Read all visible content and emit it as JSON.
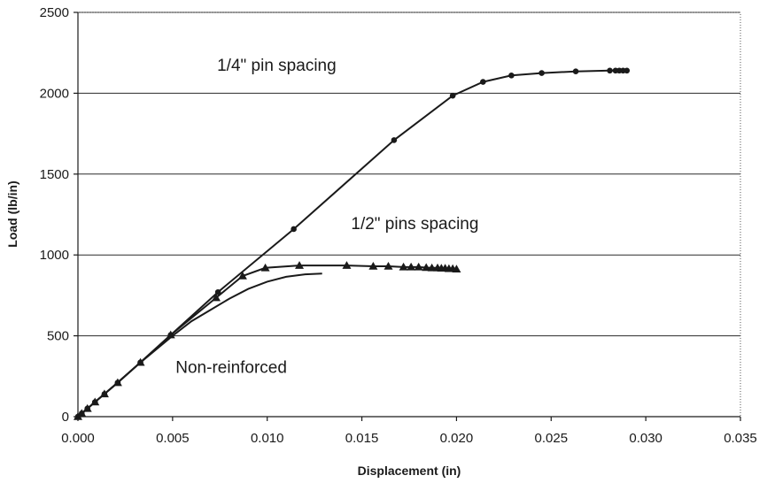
{
  "chart_data": {
    "type": "line",
    "title": "",
    "xlabel": "Displacement (in)",
    "ylabel": "Load (lb/in)",
    "xlim": [
      0.0,
      0.035
    ],
    "ylim": [
      0,
      2500
    ],
    "x_ticks": [
      "0.000",
      "0.005",
      "0.010",
      "0.015",
      "0.020",
      "0.025",
      "0.030",
      "0.035"
    ],
    "y_ticks": [
      "0",
      "500",
      "1000",
      "1500",
      "2000",
      "2500"
    ],
    "grid": "horizontal",
    "annotations": [
      {
        "text": "1/4\" pin spacing",
        "x": 0.0105,
        "y": 2140
      },
      {
        "text": "1/2\" pins spacing",
        "x": 0.0178,
        "y": 1160
      },
      {
        "text": "Non-reinforced",
        "x": 0.0081,
        "y": 270
      }
    ],
    "series": [
      {
        "marker": "circle",
        "points": [
          [
            0.0,
            0
          ],
          [
            0.0002,
            20
          ],
          [
            0.0005,
            50
          ],
          [
            0.0009,
            90
          ],
          [
            0.0014,
            140
          ],
          [
            0.0021,
            210
          ],
          [
            0.0033,
            335
          ],
          [
            0.0049,
            505
          ],
          [
            0.0074,
            770
          ],
          [
            0.0114,
            1160
          ],
          [
            0.0167,
            1710
          ],
          [
            0.0198,
            1985
          ],
          [
            0.0214,
            2070
          ],
          [
            0.0229,
            2110
          ],
          [
            0.0245,
            2125
          ],
          [
            0.0263,
            2135
          ],
          [
            0.0281,
            2140
          ],
          [
            0.0284,
            2140
          ],
          [
            0.0286,
            2140
          ],
          [
            0.0288,
            2140
          ],
          [
            0.029,
            2140
          ]
        ]
      },
      {
        "marker": "triangle",
        "points": [
          [
            0.0,
            0
          ],
          [
            0.0002,
            20
          ],
          [
            0.0005,
            50
          ],
          [
            0.0009,
            90
          ],
          [
            0.0014,
            140
          ],
          [
            0.0021,
            210
          ],
          [
            0.0033,
            335
          ],
          [
            0.0049,
            505
          ],
          [
            0.0073,
            735
          ],
          [
            0.0087,
            870
          ],
          [
            0.0099,
            920
          ],
          [
            0.0117,
            935
          ],
          [
            0.0142,
            935
          ],
          [
            0.0156,
            930
          ],
          [
            0.0164,
            930
          ],
          [
            0.0172,
            925
          ],
          [
            0.0176,
            925
          ],
          [
            0.018,
            925
          ],
          [
            0.0184,
            922
          ],
          [
            0.0187,
            920
          ],
          [
            0.019,
            920
          ],
          [
            0.0192,
            918
          ],
          [
            0.0194,
            918
          ],
          [
            0.0196,
            915
          ],
          [
            0.0198,
            915
          ],
          [
            0.02,
            912
          ]
        ]
      },
      {
        "marker": "none",
        "points": [
          [
            0.0,
            0
          ],
          [
            0.0014,
            140
          ],
          [
            0.0033,
            335
          ],
          [
            0.005,
            500
          ],
          [
            0.006,
            590
          ],
          [
            0.007,
            660
          ],
          [
            0.008,
            730
          ],
          [
            0.009,
            790
          ],
          [
            0.01,
            835
          ],
          [
            0.011,
            865
          ],
          [
            0.012,
            880
          ],
          [
            0.0129,
            885
          ]
        ]
      }
    ]
  }
}
